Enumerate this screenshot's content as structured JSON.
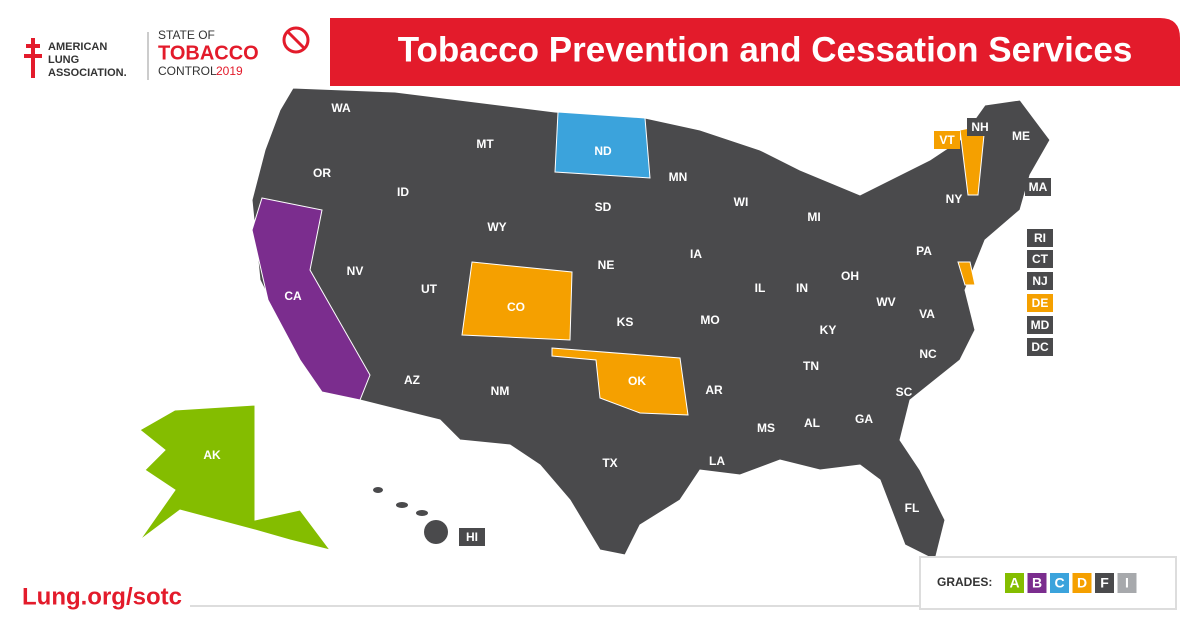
{
  "logo": {
    "organization": [
      "AMERICAN",
      "LUNG",
      "ASSOCIATION."
    ],
    "report": [
      "STATE OF",
      "TOBACCO",
      "CONTROL"
    ],
    "year": "2019"
  },
  "title": "Tobacco Prevention and Cessation Services",
  "grades_label": "GRADES:",
  "grades": [
    {
      "grade": "A",
      "color": "#84bd00"
    },
    {
      "grade": "B",
      "color": "#7b2d8e"
    },
    {
      "grade": "C",
      "color": "#3ba3dc"
    },
    {
      "grade": "D",
      "color": "#f5a000"
    },
    {
      "grade": "F",
      "color": "#4a4a4c"
    },
    {
      "grade": "I",
      "color": "#a7a9ac"
    }
  ],
  "states": [
    {
      "abbr": "WA",
      "grade": "F"
    },
    {
      "abbr": "OR",
      "grade": "F"
    },
    {
      "abbr": "CA",
      "grade": "B"
    },
    {
      "abbr": "NV",
      "grade": "F"
    },
    {
      "abbr": "ID",
      "grade": "F"
    },
    {
      "abbr": "MT",
      "grade": "F"
    },
    {
      "abbr": "WY",
      "grade": "F"
    },
    {
      "abbr": "UT",
      "grade": "F"
    },
    {
      "abbr": "AZ",
      "grade": "F"
    },
    {
      "abbr": "NM",
      "grade": "F"
    },
    {
      "abbr": "CO",
      "grade": "D"
    },
    {
      "abbr": "ND",
      "grade": "C"
    },
    {
      "abbr": "SD",
      "grade": "F"
    },
    {
      "abbr": "NE",
      "grade": "F"
    },
    {
      "abbr": "KS",
      "grade": "F"
    },
    {
      "abbr": "OK",
      "grade": "D"
    },
    {
      "abbr": "TX",
      "grade": "F"
    },
    {
      "abbr": "MN",
      "grade": "F"
    },
    {
      "abbr": "IA",
      "grade": "F"
    },
    {
      "abbr": "MO",
      "grade": "F"
    },
    {
      "abbr": "AR",
      "grade": "F"
    },
    {
      "abbr": "LA",
      "grade": "F"
    },
    {
      "abbr": "WI",
      "grade": "F"
    },
    {
      "abbr": "IL",
      "grade": "F"
    },
    {
      "abbr": "MS",
      "grade": "F"
    },
    {
      "abbr": "MI",
      "grade": "F"
    },
    {
      "abbr": "IN",
      "grade": "F"
    },
    {
      "abbr": "KY",
      "grade": "F"
    },
    {
      "abbr": "TN",
      "grade": "F"
    },
    {
      "abbr": "AL",
      "grade": "F"
    },
    {
      "abbr": "OH",
      "grade": "F"
    },
    {
      "abbr": "GA",
      "grade": "F"
    },
    {
      "abbr": "FL",
      "grade": "F"
    },
    {
      "abbr": "SC",
      "grade": "F"
    },
    {
      "abbr": "NC",
      "grade": "F"
    },
    {
      "abbr": "VA",
      "grade": "F"
    },
    {
      "abbr": "WV",
      "grade": "F"
    },
    {
      "abbr": "PA",
      "grade": "F"
    },
    {
      "abbr": "NY",
      "grade": "F"
    },
    {
      "abbr": "ME",
      "grade": "F"
    },
    {
      "abbr": "NH",
      "grade": "F"
    },
    {
      "abbr": "VT",
      "grade": "D"
    },
    {
      "abbr": "MA",
      "grade": "F"
    },
    {
      "abbr": "RI",
      "grade": "F"
    },
    {
      "abbr": "CT",
      "grade": "F"
    },
    {
      "abbr": "NJ",
      "grade": "F"
    },
    {
      "abbr": "DE",
      "grade": "D"
    },
    {
      "abbr": "MD",
      "grade": "F"
    },
    {
      "abbr": "DC",
      "grade": "F"
    },
    {
      "abbr": "HI",
      "grade": "F"
    },
    {
      "abbr": "AK",
      "grade": "A"
    }
  ],
  "footer_url": "Lung.org/sotc"
}
